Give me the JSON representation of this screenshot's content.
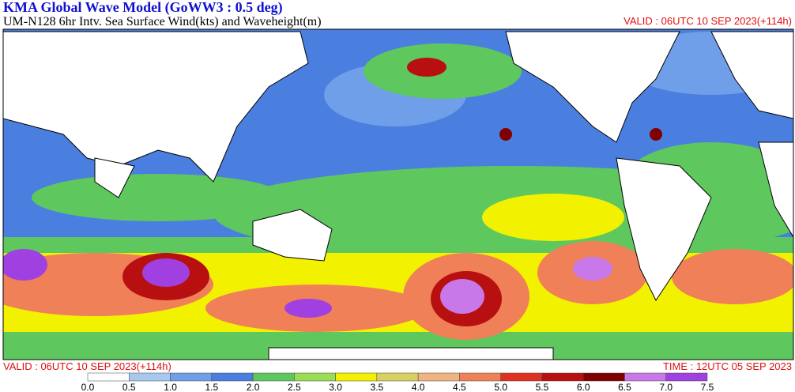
{
  "header": {
    "title": "KMA  Global Wave Model (GoWW3 : 0.5 deg)",
    "subtitle": "UM-N128  6hr Intv. Sea Surface Wind(kts) and Waveheight(m)",
    "valid": "VALID : 06UTC 10 SEP 2023(+114h)"
  },
  "footer": {
    "valid": "VALID : 06UTC 10 SEP 2023(+114h)",
    "time": "TIME : 12UTC 05 SEP 2023"
  },
  "colorbar": {
    "labels": [
      "0.0",
      "0.5",
      "1.0",
      "1.5",
      "2.0",
      "2.5",
      "3.0",
      "3.5",
      "4.0",
      "4.5",
      "5.0",
      "5.5",
      "6.0",
      "6.5",
      "7.0",
      "7.5"
    ],
    "colors": [
      "#ffffff",
      "#a8c8f0",
      "#6f9fe8",
      "#4a7fe0",
      "#5ec85e",
      "#99dd55",
      "#f2f200",
      "#d8d060",
      "#f0b480",
      "#f08058",
      "#e03020",
      "#b81010",
      "#800000",
      "#c878e8",
      "#a040e0"
    ]
  }
}
